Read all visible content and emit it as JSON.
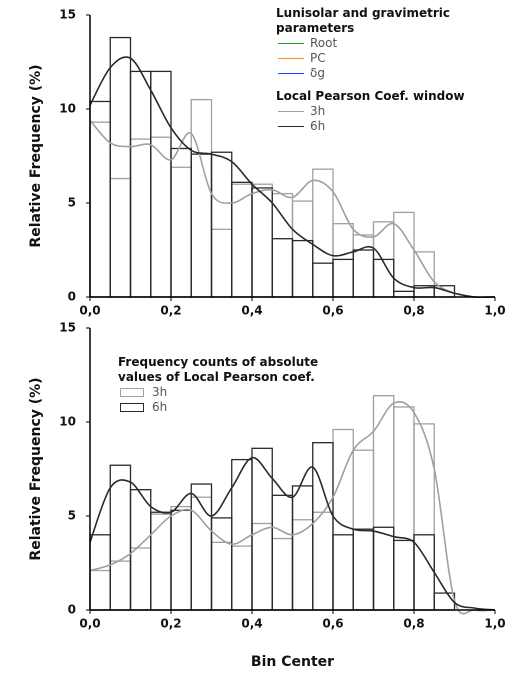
{
  "chart_data": [
    {
      "type": "histogram",
      "ylabel": "Relative Frequency (%)",
      "bins": [
        0,
        0.05,
        0.1,
        0.15,
        0.2,
        0.25,
        0.3,
        0.35,
        0.4,
        0.45,
        0.5,
        0.55,
        0.6,
        0.65,
        0.7,
        0.75,
        0.8,
        0.85,
        0.9
      ],
      "curve_x": [
        0,
        0.05,
        0.1,
        0.15,
        0.2,
        0.25,
        0.3,
        0.35,
        0.4,
        0.45,
        0.5,
        0.55,
        0.6,
        0.65,
        0.7,
        0.75,
        0.8,
        0.85,
        0.9,
        0.95,
        1.0
      ],
      "extra_legend": {
        "title": "Lunisolar and gravimetric parameters",
        "entries": [
          {
            "name": "Root",
            "color": "#2ca02c"
          },
          {
            "name": "PC",
            "color": "#ff8c1a"
          },
          {
            "name": "δg",
            "color": "#1f3fff"
          }
        ]
      },
      "legend_title": "Local Pearson Coef. window",
      "legend_style": "line",
      "series": [
        {
          "name": "3h",
          "color": "#a0a0a0",
          "values": [
            9.3,
            6.3,
            8.4,
            8.5,
            6.9,
            10.5,
            3.6,
            6.0,
            6.0,
            5.5,
            5.1,
            6.8,
            3.9,
            3.3,
            4.0,
            4.5,
            2.4,
            0
          ],
          "curve": [
            9.4,
            8.2,
            8.0,
            8.1,
            7.3,
            8.7,
            5.5,
            5.0,
            5.5,
            5.7,
            5.3,
            6.2,
            5.6,
            3.6,
            3.2,
            3.9,
            2.5,
            0.8,
            0.2,
            0,
            0
          ]
        },
        {
          "name": "6h",
          "color": "#2a2a2a",
          "values": [
            10.4,
            13.8,
            12.0,
            12.0,
            7.9,
            7.6,
            7.7,
            6.1,
            5.8,
            3.1,
            3.0,
            1.8,
            2.0,
            2.5,
            2.0,
            0.3,
            0.6,
            0.6
          ],
          "curve": [
            10.2,
            12.2,
            12.7,
            11.0,
            9.0,
            7.8,
            7.6,
            7.2,
            6.0,
            5.0,
            3.6,
            2.8,
            2.2,
            2.4,
            2.6,
            1.0,
            0.5,
            0.5,
            0.2,
            0,
            0
          ]
        }
      ],
      "xlim": [
        0,
        1.0
      ],
      "xticks": [
        {
          "value": 0,
          "label": "0,0"
        },
        {
          "value": 0.2,
          "label": "0,2"
        },
        {
          "value": 0.4,
          "label": "0,4"
        },
        {
          "value": 0.6,
          "label": "0,6"
        },
        {
          "value": 0.8,
          "label": "0,8"
        },
        {
          "value": 1.0,
          "label": "1,0"
        }
      ],
      "ylim": [
        0,
        15
      ],
      "yticks": [
        0,
        5,
        10,
        15
      ]
    },
    {
      "type": "histogram",
      "ylabel": "Relative Frequency (%)",
      "xlabel": "Bin Center",
      "bins": [
        0,
        0.05,
        0.1,
        0.15,
        0.2,
        0.25,
        0.3,
        0.35,
        0.4,
        0.45,
        0.5,
        0.55,
        0.6,
        0.65,
        0.7,
        0.75,
        0.8,
        0.85,
        0.9
      ],
      "curve_x": [
        0,
        0.05,
        0.1,
        0.15,
        0.2,
        0.25,
        0.3,
        0.35,
        0.4,
        0.45,
        0.5,
        0.55,
        0.6,
        0.65,
        0.7,
        0.75,
        0.8,
        0.85,
        0.9,
        0.95,
        1.0
      ],
      "legend_title": "Frequency counts of absolute values of Local Pearson coef.",
      "legend_style": "box",
      "series": [
        {
          "name": "3h",
          "color": "#a0a0a0",
          "values": [
            2.1,
            2.6,
            3.3,
            5.1,
            5.5,
            6.0,
            3.6,
            3.4,
            4.6,
            3.8,
            4.8,
            5.2,
            9.6,
            8.5,
            11.4,
            10.8,
            9.9,
            0
          ],
          "curve": [
            2.1,
            2.4,
            3.0,
            4.0,
            5.0,
            5.3,
            4.2,
            3.5,
            4.0,
            4.4,
            4.0,
            4.6,
            6.0,
            8.5,
            9.5,
            11.0,
            10.5,
            7.5,
            0.5,
            0,
            0
          ]
        },
        {
          "name": "6h",
          "color": "#2a2a2a",
          "values": [
            4.0,
            7.7,
            6.4,
            5.2,
            5.3,
            6.7,
            4.9,
            8.0,
            8.6,
            6.1,
            6.6,
            8.9,
            4.0,
            4.3,
            4.4,
            3.7,
            4.0,
            0.9
          ],
          "curve": [
            3.6,
            6.5,
            6.8,
            5.5,
            5.2,
            6.2,
            5.0,
            6.5,
            8.1,
            7.0,
            6.0,
            7.6,
            5.0,
            4.3,
            4.2,
            3.9,
            3.6,
            2.0,
            0.4,
            0.1,
            0
          ]
        }
      ],
      "xlim": [
        0,
        1.0
      ],
      "xticks": [
        {
          "value": 0,
          "label": "0,0"
        },
        {
          "value": 0.2,
          "label": "0,2"
        },
        {
          "value": 0.4,
          "label": "0,4"
        },
        {
          "value": 0.6,
          "label": "0,6"
        },
        {
          "value": 0.8,
          "label": "0,8"
        },
        {
          "value": 1.0,
          "label": "1,0"
        }
      ],
      "ylim": [
        0,
        15
      ],
      "yticks": [
        0,
        5,
        10,
        15
      ]
    }
  ]
}
